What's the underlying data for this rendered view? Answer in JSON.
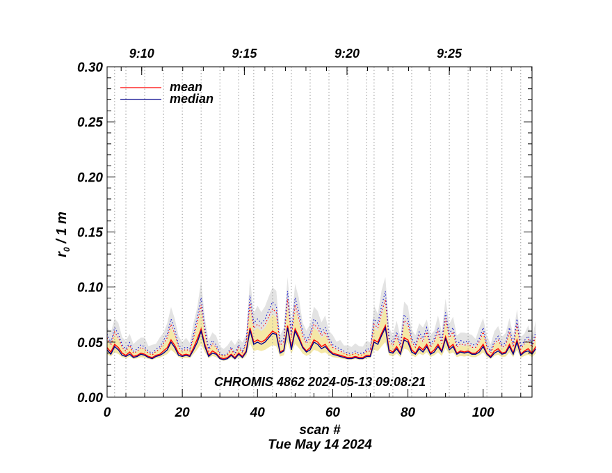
{
  "chart_data": {
    "type": "line",
    "title": "CHROMIS 4862 2024-05-13 09:08:21",
    "xlabel": "scan #",
    "xlabel2": "Tue May 14 2024",
    "ylabel": "r",
    "ylabel_sub": "0",
    "ylabel_suffix": " / 1 m",
    "xlim": [
      0,
      113
    ],
    "ylim": [
      0,
      0.3
    ],
    "x_ticks": [
      "0",
      "20",
      "40",
      "60",
      "80",
      "100"
    ],
    "x_tick_values": [
      0,
      20,
      40,
      60,
      80,
      100
    ],
    "y_ticks": [
      "0.00",
      "0.05",
      "0.10",
      "0.15",
      "0.20",
      "0.25",
      "0.30"
    ],
    "y_tick_values": [
      0,
      0.05,
      0.1,
      0.15,
      0.2,
      0.25,
      0.3
    ],
    "time_ticks": [
      "9:10",
      "9:15",
      "9:20",
      "9:25"
    ],
    "time_tick_scans": [
      9.2,
      36.5,
      63.8,
      91.0
    ],
    "scan_boundaries": [
      2,
      5,
      10,
      15,
      20,
      25,
      30,
      35,
      39,
      44,
      49,
      54,
      59,
      64,
      69,
      71,
      76,
      81,
      86,
      91,
      96,
      101,
      105,
      110
    ],
    "legend_position": "top-left",
    "series": [
      {
        "name": "mean",
        "color": "#ff0000",
        "values": [
          0.045,
          0.041,
          0.048,
          0.045,
          0.04,
          0.038,
          0.041,
          0.037,
          0.038,
          0.04,
          0.039,
          0.037,
          0.036,
          0.038,
          0.039,
          0.042,
          0.045,
          0.052,
          0.047,
          0.04,
          0.038,
          0.039,
          0.038,
          0.045,
          0.053,
          0.062,
          0.048,
          0.038,
          0.042,
          0.04,
          0.036,
          0.035,
          0.036,
          0.039,
          0.036,
          0.04,
          0.037,
          0.042,
          0.063,
          0.05,
          0.052,
          0.05,
          0.052,
          0.056,
          0.06,
          0.058,
          0.041,
          0.043,
          0.065,
          0.045,
          0.062,
          0.055,
          0.046,
          0.042,
          0.045,
          0.052,
          0.05,
          0.046,
          0.048,
          0.043,
          0.04,
          0.039,
          0.038,
          0.037,
          0.036,
          0.036,
          0.037,
          0.036,
          0.036,
          0.038,
          0.038,
          0.052,
          0.05,
          0.058,
          0.065,
          0.043,
          0.041,
          0.046,
          0.04,
          0.054,
          0.052,
          0.043,
          0.04,
          0.046,
          0.043,
          0.048,
          0.04,
          0.043,
          0.048,
          0.042,
          0.055,
          0.045,
          0.048,
          0.04,
          0.042,
          0.041,
          0.042,
          0.04,
          0.04,
          0.043,
          0.048,
          0.04,
          0.037,
          0.042,
          0.044,
          0.04,
          0.041,
          0.048,
          0.04,
          0.052,
          0.039,
          0.042,
          0.044,
          0.04,
          0.046
        ]
      },
      {
        "name": "median",
        "color": "#00008b",
        "values": [
          0.043,
          0.039,
          0.046,
          0.043,
          0.038,
          0.037,
          0.039,
          0.036,
          0.037,
          0.039,
          0.038,
          0.036,
          0.035,
          0.037,
          0.038,
          0.04,
          0.043,
          0.05,
          0.045,
          0.038,
          0.037,
          0.038,
          0.037,
          0.043,
          0.05,
          0.06,
          0.046,
          0.037,
          0.04,
          0.039,
          0.035,
          0.034,
          0.035,
          0.038,
          0.035,
          0.039,
          0.036,
          0.041,
          0.061,
          0.048,
          0.05,
          0.048,
          0.05,
          0.054,
          0.058,
          0.057,
          0.04,
          0.042,
          0.063,
          0.043,
          0.06,
          0.053,
          0.045,
          0.041,
          0.043,
          0.05,
          0.048,
          0.044,
          0.046,
          0.042,
          0.039,
          0.038,
          0.037,
          0.036,
          0.035,
          0.035,
          0.036,
          0.035,
          0.035,
          0.037,
          0.037,
          0.05,
          0.048,
          0.056,
          0.063,
          0.041,
          0.04,
          0.044,
          0.039,
          0.052,
          0.05,
          0.041,
          0.039,
          0.044,
          0.041,
          0.046,
          0.039,
          0.041,
          0.046,
          0.041,
          0.053,
          0.043,
          0.046,
          0.039,
          0.041,
          0.04,
          0.041,
          0.039,
          0.039,
          0.041,
          0.046,
          0.039,
          0.036,
          0.04,
          0.042,
          0.039,
          0.04,
          0.046,
          0.039,
          0.05,
          0.038,
          0.041,
          0.042,
          0.039,
          0.044
        ]
      }
    ]
  }
}
